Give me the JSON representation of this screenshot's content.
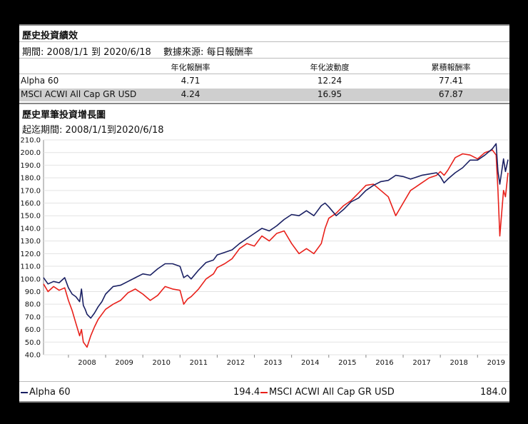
{
  "performance": {
    "title": "歷史投資績效",
    "period_line": "期間: 2008/1/1 到 2020/6/18　 數據來源: 每日報酬率",
    "headers": [
      "年化報酬率",
      "年化波動度",
      "累積報酬率"
    ],
    "rows": [
      {
        "name": "Alpha 60",
        "annual_return": "4.71",
        "volatility": "12.24",
        "cumulative": "77.41"
      },
      {
        "name": "MSCI ACWI All Cap GR USD",
        "annual_return": "4.24",
        "volatility": "16.95",
        "cumulative": "67.87"
      }
    ]
  },
  "growth": {
    "title": "歷史單筆投資增長圖",
    "period_line": "起迄期間: 2008/1/1到2020/6/18"
  },
  "legend": [
    {
      "name": "Alpha 60",
      "value": "194.4",
      "color": "#1a2063"
    },
    {
      "name": "MSCI ACWI All Cap GR USD",
      "value": "184.0",
      "color": "#e8201a"
    }
  ],
  "chart_data": {
    "type": "line",
    "title": "歷史單筆投資增長圖",
    "xlabel": "",
    "ylabel": "",
    "ylim": [
      40,
      210
    ],
    "y_ticks": [
      "40.0",
      "50.0",
      "60.0",
      "70.0",
      "80.0",
      "90.0",
      "100.0",
      "110.0",
      "120.0",
      "130.0",
      "140.0",
      "150.0",
      "160.0",
      "170.0",
      "180.0",
      "190.0",
      "200.0",
      "210.0"
    ],
    "x_ticks": [
      "2008",
      "2009",
      "2010",
      "2011",
      "2012",
      "2013",
      "2014",
      "2015",
      "2016",
      "2017",
      "2018",
      "2019"
    ],
    "xlim": [
      2007.33,
      2019.82
    ],
    "series": [
      {
        "name": "Alpha 60",
        "color": "#1a2063",
        "x": [
          2007.33,
          2007.45,
          2007.6,
          2007.75,
          2007.9,
          2008.0,
          2008.1,
          2008.2,
          2008.3,
          2008.35,
          2008.4,
          2008.45,
          2008.5,
          2008.6,
          2008.7,
          2008.8,
          2008.9,
          2009.0,
          2009.2,
          2009.4,
          2009.6,
          2009.8,
          2010.0,
          2010.2,
          2010.4,
          2010.6,
          2010.8,
          2011.0,
          2011.1,
          2011.2,
          2011.3,
          2011.5,
          2011.7,
          2011.9,
          2012.0,
          2012.2,
          2012.4,
          2012.6,
          2012.8,
          2013.0,
          2013.2,
          2013.4,
          2013.6,
          2013.8,
          2014.0,
          2014.2,
          2014.4,
          2014.6,
          2014.8,
          2014.9,
          2015.0,
          2015.2,
          2015.4,
          2015.6,
          2015.8,
          2016.0,
          2016.2,
          2016.4,
          2016.6,
          2016.8,
          2017.0,
          2017.2,
          2017.3,
          2017.5,
          2017.7,
          2017.9,
          2018.0,
          2018.1,
          2018.2,
          2018.4,
          2018.6,
          2018.8,
          2019.0,
          2019.2,
          2019.4,
          2019.5,
          2019.55,
          2019.6,
          2019.7,
          2019.75,
          2019.82
        ],
        "values": [
          101,
          96,
          98,
          97,
          101,
          93,
          88,
          86,
          82,
          92,
          79,
          76,
          72,
          69,
          73,
          78,
          82,
          88,
          94,
          95,
          98,
          101,
          104,
          103,
          108,
          112,
          112,
          110,
          101,
          103,
          100,
          107,
          113,
          115,
          119,
          121,
          123,
          128,
          132,
          136,
          140,
          138,
          142,
          147,
          151,
          150,
          154,
          150,
          158,
          160,
          157,
          150,
          155,
          161,
          164,
          170,
          174,
          177,
          178,
          182,
          181,
          179,
          180,
          182,
          183,
          184,
          181,
          176,
          179,
          184,
          188,
          194,
          194,
          198,
          203,
          207,
          185,
          175,
          195,
          185,
          194.4
        ]
      },
      {
        "name": "MSCI ACWI All Cap GR USD",
        "color": "#e8201a",
        "x": [
          2007.33,
          2007.45,
          2007.6,
          2007.75,
          2007.9,
          2008.0,
          2008.1,
          2008.2,
          2008.3,
          2008.35,
          2008.4,
          2008.45,
          2008.5,
          2008.6,
          2008.7,
          2008.8,
          2008.9,
          2009.0,
          2009.2,
          2009.4,
          2009.6,
          2009.8,
          2010.0,
          2010.2,
          2010.4,
          2010.6,
          2010.8,
          2011.0,
          2011.1,
          2011.2,
          2011.3,
          2011.5,
          2011.7,
          2011.9,
          2012.0,
          2012.2,
          2012.4,
          2012.6,
          2012.8,
          2013.0,
          2013.2,
          2013.4,
          2013.6,
          2013.8,
          2014.0,
          2014.2,
          2014.4,
          2014.6,
          2014.8,
          2014.9,
          2015.0,
          2015.2,
          2015.4,
          2015.6,
          2015.8,
          2016.0,
          2016.2,
          2016.4,
          2016.6,
          2016.8,
          2017.0,
          2017.2,
          2017.3,
          2017.5,
          2017.7,
          2017.9,
          2018.0,
          2018.1,
          2018.2,
          2018.4,
          2018.6,
          2018.8,
          2019.0,
          2019.2,
          2019.4,
          2019.5,
          2019.55,
          2019.6,
          2019.7,
          2019.75,
          2019.82
        ],
        "values": [
          96,
          90,
          94,
          91,
          93,
          83,
          75,
          65,
          55,
          60,
          50,
          48,
          46,
          55,
          62,
          68,
          72,
          76,
          80,
          83,
          89,
          92,
          88,
          83,
          87,
          94,
          92,
          91,
          80,
          84,
          86,
          92,
          100,
          104,
          109,
          112,
          116,
          124,
          128,
          126,
          134,
          130,
          136,
          138,
          128,
          120,
          124,
          120,
          128,
          140,
          148,
          152,
          158,
          162,
          168,
          174,
          175,
          170,
          165,
          150,
          160,
          170,
          172,
          176,
          180,
          182,
          185,
          182,
          186,
          196,
          199,
          198,
          195,
          200,
          202,
          198,
          170,
          134,
          170,
          165,
          184.0
        ]
      }
    ]
  }
}
